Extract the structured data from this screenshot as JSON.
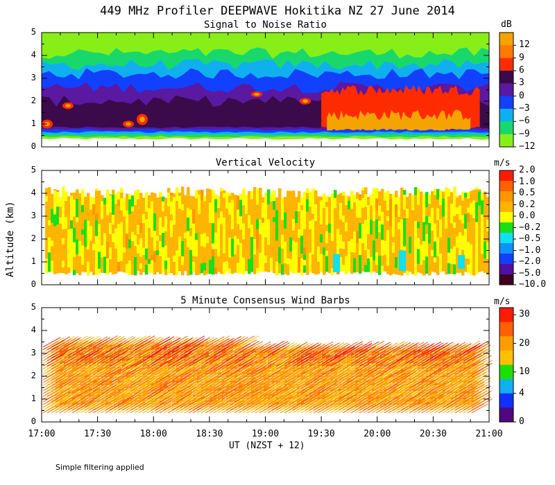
{
  "main_title": "449 MHz Profiler DEEPWAVE Hokitika NZ 27 June 2014",
  "x_axis_label": "UT  (NZST + 12)",
  "y_axis_label": "Altitude (km)",
  "footnote": "Simple filtering applied",
  "x_ticks": [
    "17:00",
    "17:30",
    "18:00",
    "18:30",
    "19:00",
    "19:30",
    "20:00",
    "20:30",
    "21:00"
  ],
  "chart_data": [
    {
      "type": "heatmap",
      "title": "Signal to Noise Ratio",
      "unit": "dB",
      "xlim": [
        "17:00",
        "21:00"
      ],
      "ylim": [
        0,
        5
      ],
      "y_ticks": [
        "0",
        "1",
        "2",
        "3",
        "4",
        "5"
      ],
      "colorbar": {
        "labels": [
          "12",
          "9",
          "6",
          "3",
          "0",
          "−3",
          "−6",
          "−9",
          "−12"
        ],
        "colors": [
          "#f5a300",
          "#ff7a00",
          "#ff2b00",
          "#3a0a4a",
          "#5b18a0",
          "#1240ff",
          "#10b0f0",
          "#18d86c",
          "#88ee18"
        ]
      },
      "layers": [
        {
          "level": "-12",
          "bottom": 0.35,
          "top": 5.0,
          "color": "#88ee18"
        },
        {
          "level": "-9",
          "bottom": 0.45,
          "top": 4.1,
          "color": "#18d86c"
        },
        {
          "level": "-6",
          "bottom": 0.55,
          "top": 3.6,
          "color": "#10b0f0"
        },
        {
          "level": "-3",
          "bottom": 0.65,
          "top": 3.2,
          "color": "#1240ff"
        },
        {
          "level": "0",
          "bottom": 0.75,
          "top": 2.6,
          "color": "#5b18a0"
        },
        {
          "level": "3",
          "bottom": 0.85,
          "top": 2.0,
          "color": "#3a0a4a"
        },
        {
          "level": "6",
          "bottom": 0.85,
          "top": 2.5,
          "color": "#ff2b00",
          "x_from": "19:30",
          "x_to": "20:55"
        },
        {
          "level": "12",
          "bottom": 0.75,
          "top": 1.4,
          "color": "#f5a300",
          "x_from": "19:33",
          "x_to": "20:50"
        }
      ]
    },
    {
      "type": "heatmap",
      "title": "Vertical Velocity",
      "unit": "m/s",
      "xlim": [
        "17:00",
        "21:00"
      ],
      "ylim": [
        0,
        5
      ],
      "y_ticks": [
        "0",
        "1",
        "2",
        "3",
        "4",
        "5"
      ],
      "colorbar": {
        "labels": [
          "2.0",
          "1.0",
          "0.5",
          "0.2",
          "0.0",
          "−0.2",
          "−0.5",
          "−1.0",
          "−2.0",
          "−5.0",
          "−10.0"
        ],
        "colors": [
          "#ff1a00",
          "#ff6000",
          "#ff9500",
          "#ffb400",
          "#ffff00",
          "#18e018",
          "#10e0f0",
          "#1090ff",
          "#1040ff",
          "#5010a0",
          "#400020"
        ]
      },
      "data_range_km": [
        0.4,
        4.3
      ],
      "dominant": [
        "0.2",
        "0.0",
        "-0.2"
      ]
    },
    {
      "type": "scatter",
      "title": "5 Minute Consensus Wind Barbs",
      "unit": "m/s",
      "xlim": [
        "17:00",
        "21:00"
      ],
      "ylim": [
        0,
        5
      ],
      "y_ticks": [
        "0",
        "1",
        "2",
        "3",
        "4",
        "5"
      ],
      "colorbar": {
        "labels": [
          "30",
          "20",
          "10",
          "4",
          "0"
        ],
        "colors": [
          "#ff1a00",
          "#ff6000",
          "#ff9d00",
          "#ffc000",
          "#1ce000",
          "#10b0f0",
          "#1030ff",
          "#500880"
        ]
      },
      "data_range_km": [
        0.4,
        3.4
      ],
      "typical_speed_ms": [
        15,
        30
      ]
    }
  ]
}
